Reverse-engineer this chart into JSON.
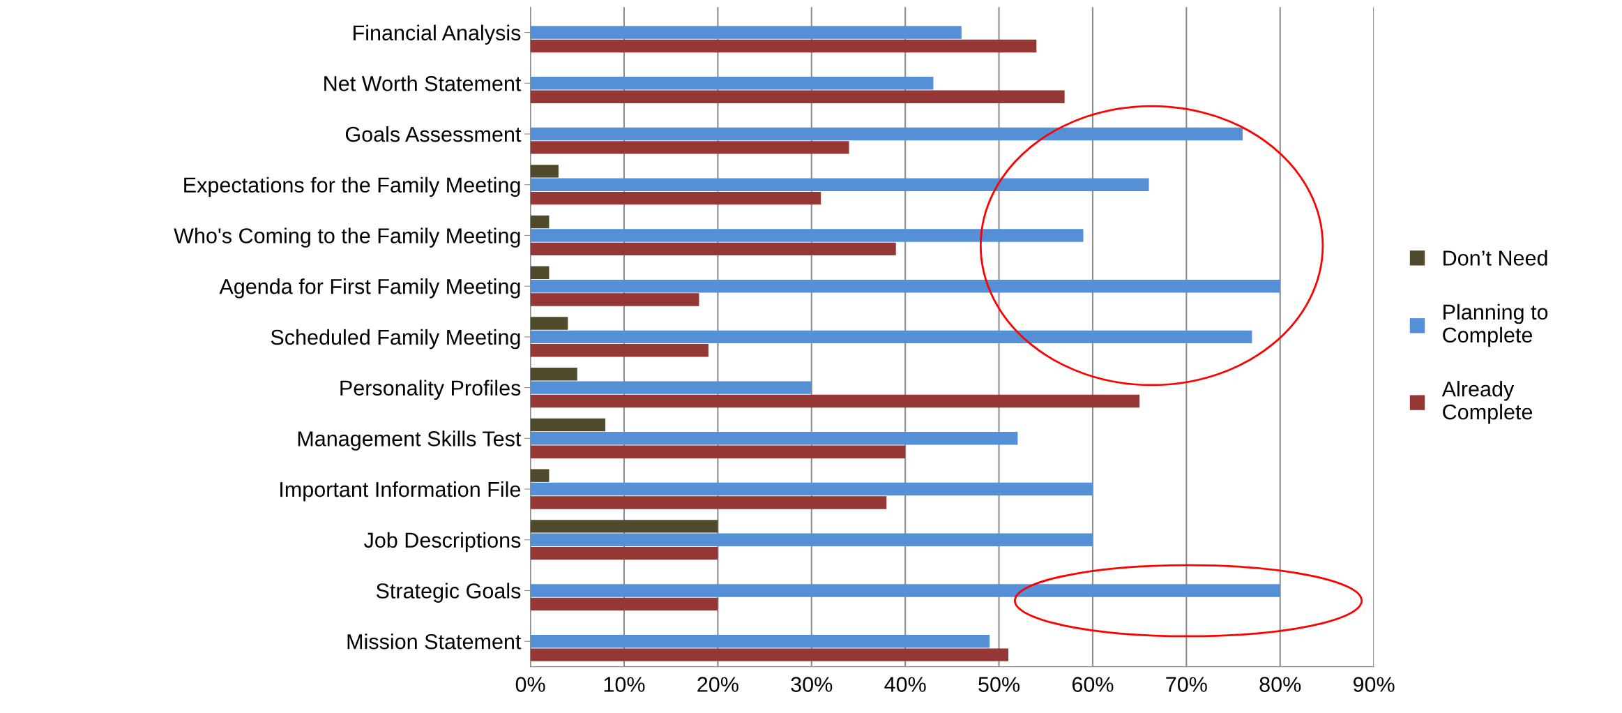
{
  "chart_data": {
    "type": "bar",
    "orientation": "horizontal",
    "categories": [
      "Financial Analysis",
      "Net Worth Statement",
      "Goals Assessment",
      "Expectations for the Family Meeting",
      "Who's Coming to the Family Meeting",
      "Agenda for First Family Meeting",
      "Scheduled Family Meeting",
      "Personality Profiles",
      "Management Skills Test",
      "Important Information File",
      "Job Descriptions",
      "Strategic Goals",
      "Mission Statement"
    ],
    "series": [
      {
        "name": "Don’t Need",
        "color": "#4f4a2c",
        "values": [
          null,
          null,
          null,
          3,
          2,
          2,
          4,
          5,
          8,
          2,
          20,
          null,
          null
        ]
      },
      {
        "name": "Planning to Complete",
        "color": "#5590d6",
        "values": [
          46,
          43,
          76,
          66,
          59,
          80,
          77,
          30,
          52,
          60,
          60,
          80,
          49
        ]
      },
      {
        "name": "Already Complete",
        "color": "#953735",
        "values": [
          54,
          57,
          34,
          31,
          39,
          18,
          19,
          65,
          40,
          38,
          20,
          20,
          51
        ]
      }
    ],
    "xlim": [
      0,
      90
    ],
    "xticks": [
      {
        "value": 0,
        "label": "0%"
      },
      {
        "value": 10,
        "label": "10%"
      },
      {
        "value": 20,
        "label": "20%"
      },
      {
        "value": 30,
        "label": "30%"
      },
      {
        "value": 40,
        "label": "40%"
      },
      {
        "value": 50,
        "label": "50%"
      },
      {
        "value": 60,
        "label": "60%"
      },
      {
        "value": 70,
        "label": "70%"
      },
      {
        "value": 80,
        "label": "80%"
      },
      {
        "value": 90,
        "label": "90%"
      }
    ],
    "grid": "x",
    "legend": "right"
  }
}
